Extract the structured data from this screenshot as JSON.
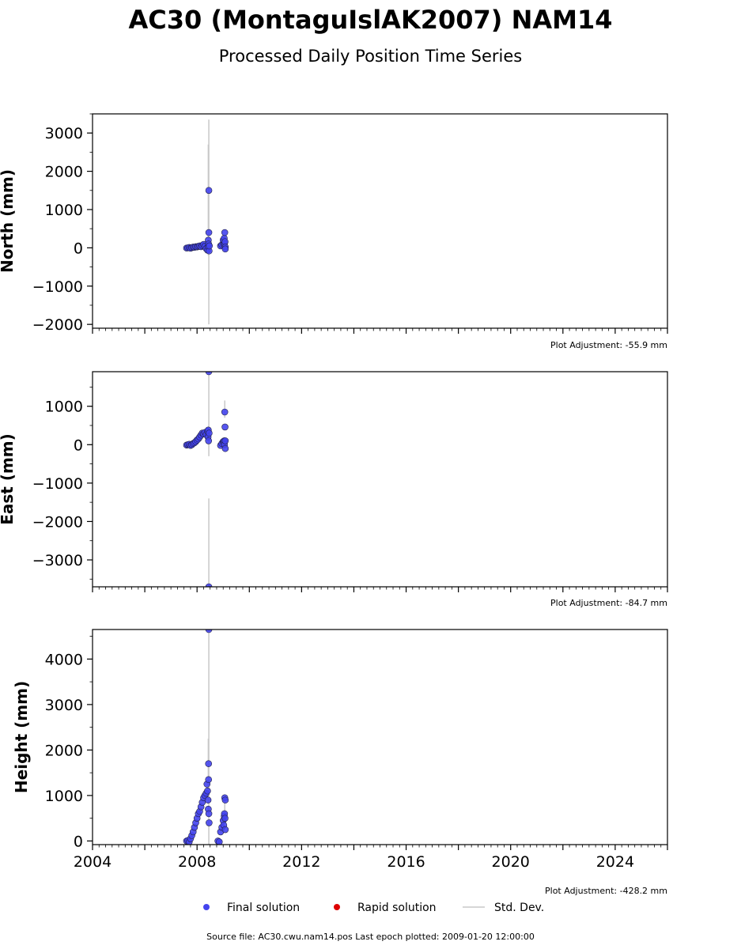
{
  "title": "AC30 (MontaguIslAK2007) NAM14",
  "subtitle": "Processed Daily Position Time Series",
  "legend": {
    "final_label": "Final solution",
    "rapid_label": "Rapid solution",
    "std_label": "Std. Dev."
  },
  "footer": "Source file: AC30.cwu.nam14.pos  Last epoch plotted: 2009-01-20 12:00:00",
  "colors": {
    "final": "#4444ee",
    "rapid": "#dd0000",
    "std": "#c8c8c8",
    "edge": "#222244"
  },
  "chart_data": [
    {
      "type": "scatter",
      "ylabel": "North (mm)",
      "xlim": [
        2004,
        2026
      ],
      "ylim": [
        -2100,
        3500
      ],
      "yticks": [
        {
          "v": -2000,
          "label": "−2000"
        },
        {
          "v": -1000,
          "label": "−1000"
        },
        {
          "v": 0,
          "label": "0"
        },
        {
          "v": 1000,
          "label": "1000"
        },
        {
          "v": 2000,
          "label": "2000"
        },
        {
          "v": 3000,
          "label": "3000"
        }
      ],
      "adjustment": "Plot Adjustment: -55.9 mm",
      "series": [
        {
          "points": [
            [
              2007.6,
              -5
            ],
            [
              2007.65,
              0
            ],
            [
              2007.7,
              10
            ],
            [
              2007.75,
              -10
            ],
            [
              2007.8,
              5
            ],
            [
              2007.85,
              20
            ],
            [
              2007.9,
              15
            ],
            [
              2007.95,
              30
            ],
            [
              2008.0,
              25
            ],
            [
              2008.05,
              40
            ],
            [
              2008.1,
              50
            ],
            [
              2008.15,
              30
            ],
            [
              2008.2,
              60
            ],
            [
              2008.25,
              90
            ],
            [
              2008.3,
              40
            ],
            [
              2008.35,
              -20
            ],
            [
              2008.4,
              -60
            ],
            [
              2008.42,
              30
            ],
            [
              2008.43,
              200
            ],
            [
              2008.44,
              100
            ],
            [
              2008.45,
              1500
            ],
            [
              2008.45,
              400
            ],
            [
              2008.46,
              -80
            ],
            [
              2008.47,
              50
            ],
            [
              2008.9,
              50
            ],
            [
              2008.95,
              80
            ],
            [
              2009.0,
              200
            ],
            [
              2009.02,
              100
            ],
            [
              2009.04,
              250
            ],
            [
              2009.05,
              120
            ],
            [
              2009.06,
              400
            ],
            [
              2009.07,
              160
            ],
            [
              2009.08,
              20
            ],
            [
              2009.08,
              -30
            ]
          ]
        }
      ],
      "std_bars": [
        [
          2008.45,
          -2000,
          3350
        ],
        [
          2008.43,
          -200,
          2700
        ]
      ]
    },
    {
      "type": "scatter",
      "ylabel": "East (mm)",
      "xlim": [
        2004,
        2026
      ],
      "ylim": [
        -3700,
        1900
      ],
      "yticks": [
        {
          "v": -3000,
          "label": "−3000"
        },
        {
          "v": -2000,
          "label": "−2000"
        },
        {
          "v": -1000,
          "label": "−1000"
        },
        {
          "v": 0,
          "label": "0"
        },
        {
          "v": 1000,
          "label": "1000"
        }
      ],
      "adjustment": "Plot Adjustment: -84.7 mm",
      "series": [
        {
          "points": [
            [
              2007.6,
              -10
            ],
            [
              2007.65,
              0
            ],
            [
              2007.7,
              10
            ],
            [
              2007.75,
              -20
            ],
            [
              2007.8,
              0
            ],
            [
              2007.85,
              30
            ],
            [
              2007.9,
              50
            ],
            [
              2007.95,
              80
            ],
            [
              2008.0,
              120
            ],
            [
              2008.05,
              150
            ],
            [
              2008.1,
              200
            ],
            [
              2008.15,
              250
            ],
            [
              2008.2,
              300
            ],
            [
              2008.25,
              280
            ],
            [
              2008.3,
              320
            ],
            [
              2008.35,
              260
            ],
            [
              2008.4,
              350
            ],
            [
              2008.42,
              200
            ],
            [
              2008.43,
              380
            ],
            [
              2008.44,
              100
            ],
            [
              2008.45,
              1900
            ],
            [
              2008.45,
              -3700
            ],
            [
              2008.46,
              300
            ],
            [
              2008.9,
              -20
            ],
            [
              2008.95,
              30
            ],
            [
              2009.0,
              80
            ],
            [
              2009.02,
              50
            ],
            [
              2009.04,
              100
            ],
            [
              2009.05,
              0
            ],
            [
              2009.06,
              850
            ],
            [
              2009.07,
              460
            ],
            [
              2009.08,
              100
            ],
            [
              2009.08,
              -100
            ]
          ]
        }
      ],
      "std_bars": [
        [
          2008.45,
          -3700,
          -1400
        ],
        [
          2008.45,
          -300,
          1900
        ],
        [
          2009.06,
          700,
          1150
        ]
      ]
    },
    {
      "type": "scatter",
      "ylabel": "Height (mm)",
      "xlim": [
        2004,
        2026
      ],
      "ylim": [
        -80,
        4650
      ],
      "xticks": [
        {
          "v": 2004,
          "label": "2004"
        },
        {
          "v": 2008,
          "label": "2008"
        },
        {
          "v": 2012,
          "label": "2012"
        },
        {
          "v": 2016,
          "label": "2016"
        },
        {
          "v": 2020,
          "label": "2020"
        },
        {
          "v": 2024,
          "label": "2024"
        }
      ],
      "yticks": [
        {
          "v": 0,
          "label": "0"
        },
        {
          "v": 1000,
          "label": "1000"
        },
        {
          "v": 2000,
          "label": "2000"
        },
        {
          "v": 3000,
          "label": "3000"
        },
        {
          "v": 4000,
          "label": "4000"
        }
      ],
      "adjustment": "Plot Adjustment: -428.2 mm",
      "series": [
        {
          "points": [
            [
              2007.6,
              0
            ],
            [
              2007.65,
              10
            ],
            [
              2007.7,
              -20
            ],
            [
              2007.75,
              50
            ],
            [
              2007.8,
              120
            ],
            [
              2007.85,
              200
            ],
            [
              2007.9,
              300
            ],
            [
              2007.95,
              400
            ],
            [
              2008.0,
              500
            ],
            [
              2008.05,
              600
            ],
            [
              2008.1,
              650
            ],
            [
              2008.15,
              750
            ],
            [
              2008.2,
              850
            ],
            [
              2008.25,
              950
            ],
            [
              2008.3,
              1000
            ],
            [
              2008.35,
              1050
            ],
            [
              2008.38,
              1250
            ],
            [
              2008.4,
              1100
            ],
            [
              2008.42,
              900
            ],
            [
              2008.43,
              700
            ],
            [
              2008.44,
              1700
            ],
            [
              2008.44,
              1350
            ],
            [
              2008.45,
              4650
            ],
            [
              2008.45,
              600
            ],
            [
              2008.46,
              400
            ],
            [
              2008.8,
              0
            ],
            [
              2008.85,
              -20
            ],
            [
              2008.9,
              200
            ],
            [
              2008.95,
              300
            ],
            [
              2009.0,
              450
            ],
            [
              2009.02,
              350
            ],
            [
              2009.04,
              550
            ],
            [
              2009.05,
              600
            ],
            [
              2009.06,
              950
            ],
            [
              2009.07,
              500
            ],
            [
              2009.08,
              250
            ],
            [
              2009.08,
              900
            ]
          ]
        }
      ],
      "std_bars": [
        [
          2008.45,
          -80,
          4650
        ],
        [
          2008.43,
          1200,
          2250
        ],
        [
          2009.06,
          600,
          950
        ]
      ]
    }
  ]
}
